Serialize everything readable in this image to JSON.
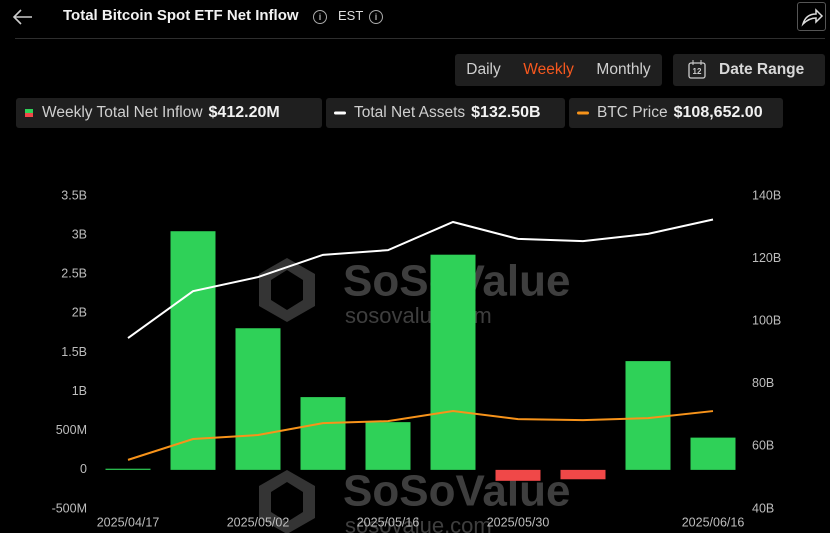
{
  "header": {
    "title": "Total Bitcoin Spot ETF Net Inflow",
    "timezone": "EST"
  },
  "controls": {
    "intervals": [
      "Daily",
      "Weekly",
      "Monthly"
    ],
    "selected": 1,
    "date_range": "Date Range"
  },
  "watermark": {
    "brand": "SoSoValue",
    "url": "sosovalue.com"
  },
  "chart_data": {
    "type": "bar",
    "categories": [
      "2025/04/17",
      null,
      "2025/05/02",
      null,
      "2025/05/16",
      null,
      "2025/05/30",
      null,
      null,
      "2025/06/16"
    ],
    "series": [
      {
        "name": "Weekly Total Net Inflow",
        "legend_value": "$412.20M",
        "type": "bar",
        "color": "#2fd158",
        "negative_color": "#f04848",
        "values": [
          15000000,
          3050000000,
          1810000000,
          930000000,
          610000000,
          2750000000,
          -140000000,
          -120000000,
          1390000000,
          412200000
        ]
      },
      {
        "name": "Total Net Assets",
        "legend_value": "$132.50B",
        "type": "line",
        "color": "#ffffff",
        "axis": "y2",
        "values": [
          94600000000,
          109600000000,
          114100000000,
          121200000000,
          122700000000,
          131700000000,
          126300000000,
          125600000000,
          127900000000,
          132500000000
        ]
      },
      {
        "name": "BTC Price",
        "legend_value": "$108,652.00",
        "type": "line",
        "color": "#f7931a",
        "axis": "y3",
        "values": [
          84100,
          94600,
          96600,
          102600,
          103600,
          108652,
          104600,
          104100,
          105100,
          108652
        ]
      }
    ],
    "ylim": [
      -500000000,
      3500000000
    ],
    "yticks": [
      {
        "value": -500000000,
        "label": "-500M"
      },
      0,
      {
        "value": 500000000,
        "label": "500M"
      },
      {
        "value": 1000000000,
        "label": "1B"
      },
      {
        "value": 1500000000,
        "label": "1.5B"
      },
      {
        "value": 2000000000,
        "label": "2B"
      },
      {
        "value": 2500000000,
        "label": "2.5B"
      },
      {
        "value": 3000000000,
        "label": "3B"
      },
      {
        "value": 3500000000,
        "label": "3.5B"
      }
    ],
    "y2lim": [
      40000000000,
      140000000000
    ],
    "y2ticks": [
      {
        "value": 40000000000,
        "label": "40B"
      },
      {
        "value": 60000000000,
        "label": "60B"
      },
      {
        "value": 80000000000,
        "label": "80B"
      },
      {
        "value": 100000000000,
        "label": "100B"
      },
      {
        "value": 120000000000,
        "label": "120B"
      },
      {
        "value": 140000000000,
        "label": "140B"
      }
    ],
    "y3lim": [
      59400,
      216800
    ],
    "grid": false
  }
}
